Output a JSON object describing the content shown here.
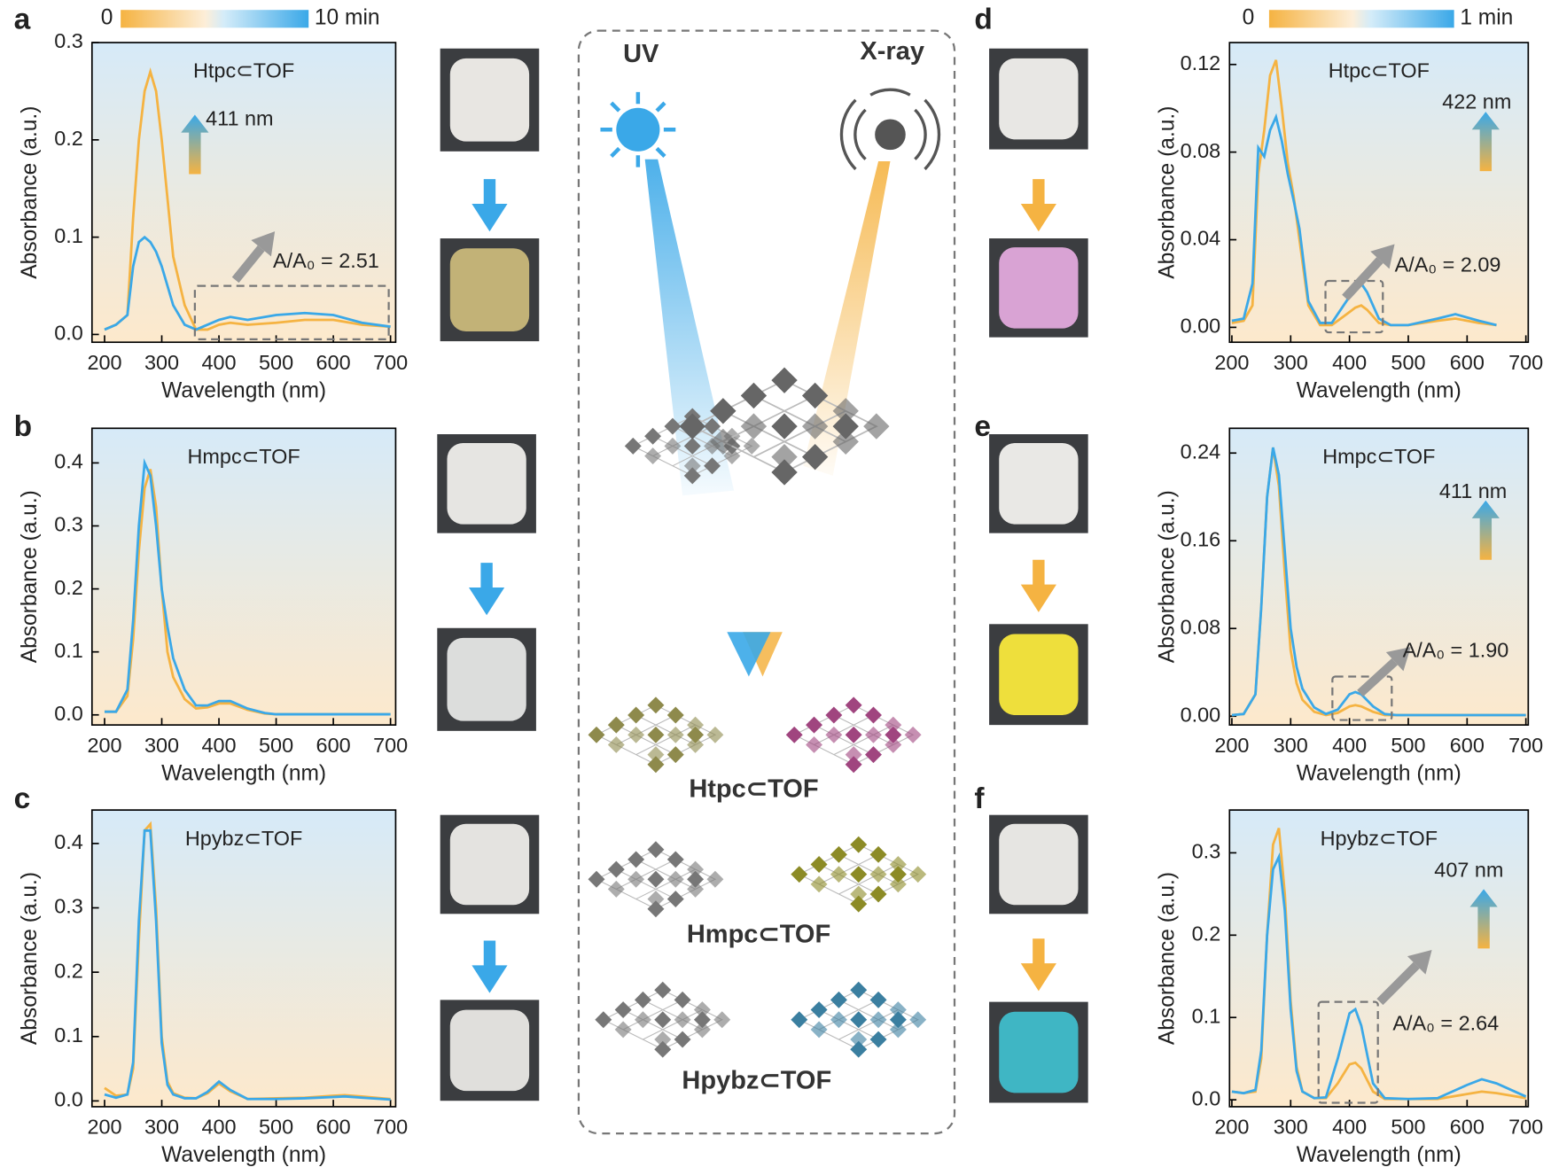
{
  "chart_data": [
    {
      "type": "line",
      "panel": "a",
      "title": "Htpc⊂TOF",
      "xlabel": "Wavelength (nm)",
      "ylabel": "Absorbance (a.u.)",
      "x": [
        200,
        220,
        240,
        250,
        260,
        270,
        280,
        290,
        300,
        310,
        320,
        340,
        360,
        380,
        400,
        420,
        450,
        500,
        550,
        600,
        650,
        700
      ],
      "series": [
        {
          "name": "0",
          "color": "#f5b342",
          "values": [
            0.005,
            0.01,
            0.02,
            0.12,
            0.2,
            0.25,
            0.27,
            0.25,
            0.2,
            0.14,
            0.08,
            0.03,
            0.005,
            0.005,
            0.01,
            0.012,
            0.01,
            0.012,
            0.015,
            0.015,
            0.01,
            0.008
          ]
        },
        {
          "name": "10 min",
          "color": "#3aa8e8",
          "values": [
            0.005,
            0.01,
            0.02,
            0.07,
            0.095,
            0.1,
            0.095,
            0.085,
            0.07,
            0.05,
            0.03,
            0.01,
            0.005,
            0.01,
            0.015,
            0.018,
            0.015,
            0.02,
            0.022,
            0.02,
            0.012,
            0.008
          ]
        }
      ],
      "xlim": [
        178,
        709
      ],
      "ylim": [
        -0.008,
        0.3
      ],
      "xticks": [
        200,
        300,
        400,
        500,
        600,
        700
      ],
      "yticks": [
        {
          "value": 0,
          "label": "0.0"
        },
        0.1,
        0.2,
        0.3
      ],
      "annotations": [
        "411 nm",
        "A/A₀ = 2.51"
      ]
    },
    {
      "type": "line",
      "panel": "b",
      "title": "Hmpc⊂TOF",
      "xlabel": "Wavelength (nm)",
      "ylabel": "Absorbance (a.u.)",
      "x": [
        200,
        220,
        240,
        250,
        260,
        270,
        280,
        290,
        300,
        310,
        320,
        340,
        360,
        380,
        400,
        420,
        450,
        480,
        500,
        550,
        600,
        650,
        700
      ],
      "series": [
        {
          "color": "#f5b342",
          "values": [
            0.005,
            0.005,
            0.03,
            0.12,
            0.26,
            0.36,
            0.39,
            0.33,
            0.2,
            0.1,
            0.06,
            0.025,
            0.01,
            0.012,
            0.018,
            0.018,
            0.008,
            0.002,
            0.001,
            0.001,
            0.001,
            0.001,
            0.001
          ]
        },
        {
          "color": "#3aa8e8",
          "values": [
            0.005,
            0.005,
            0.04,
            0.15,
            0.3,
            0.4,
            0.38,
            0.3,
            0.2,
            0.14,
            0.09,
            0.04,
            0.015,
            0.015,
            0.022,
            0.022,
            0.01,
            0.003,
            0.001,
            0.001,
            0.001,
            0.001,
            0.001
          ]
        }
      ],
      "xlim": [
        178,
        709
      ],
      "ylim": [
        -0.016,
        0.455
      ],
      "xticks": [
        200,
        300,
        400,
        500,
        600,
        700
      ],
      "yticks": [
        {
          "value": 0,
          "label": "0.0"
        },
        0.1,
        0.2,
        0.3,
        0.4
      ]
    },
    {
      "type": "line",
      "panel": "c",
      "title": "Hpybz⊂TOF",
      "xlabel": "Wavelength (nm)",
      "ylabel": "Absorbance (a.u.)",
      "x": [
        200,
        220,
        240,
        250,
        260,
        270,
        280,
        290,
        300,
        310,
        320,
        340,
        360,
        380,
        400,
        420,
        450,
        500,
        550,
        600,
        620,
        650,
        700
      ],
      "series": [
        {
          "color": "#f5b342",
          "values": [
            0.02,
            0.008,
            0.01,
            0.05,
            0.25,
            0.42,
            0.43,
            0.3,
            0.1,
            0.03,
            0.012,
            0.005,
            0.004,
            0.012,
            0.027,
            0.015,
            0.003,
            0.004,
            0.005,
            0.008,
            0.009,
            0.007,
            0.003
          ]
        },
        {
          "color": "#3aa8e8",
          "values": [
            0.01,
            0.005,
            0.01,
            0.06,
            0.28,
            0.42,
            0.42,
            0.28,
            0.09,
            0.025,
            0.01,
            0.004,
            0.004,
            0.014,
            0.03,
            0.017,
            0.003,
            0.003,
            0.004,
            0.006,
            0.007,
            0.005,
            0.002
          ]
        }
      ],
      "xlim": [
        178,
        709
      ],
      "ylim": [
        -0.009,
        0.452
      ],
      "xticks": [
        200,
        300,
        400,
        500,
        600,
        700
      ],
      "yticks": [
        {
          "value": 0,
          "label": "0.0"
        },
        0.1,
        0.2,
        0.3,
        0.4
      ]
    },
    {
      "type": "line",
      "panel": "d",
      "title": "Htpc⊂TOF",
      "xlabel": "Wavelength (nm)",
      "ylabel": "Absorbance (a.u.)",
      "x": [
        200,
        220,
        235,
        245,
        255,
        265,
        275,
        285,
        295,
        305,
        315,
        330,
        350,
        370,
        390,
        410,
        420,
        430,
        450,
        470,
        500,
        550,
        580,
        620,
        650
      ],
      "series": [
        {
          "name": "0",
          "color": "#f5b342",
          "values": [
            0.002,
            0.003,
            0.01,
            0.07,
            0.09,
            0.115,
            0.122,
            0.1,
            0.075,
            0.06,
            0.04,
            0.01,
            0.001,
            0.001,
            0.005,
            0.009,
            0.01,
            0.008,
            0.002,
            0.001,
            0.001,
            0.003,
            0.004,
            0.002,
            0.001
          ]
        },
        {
          "name": "1 min",
          "color": "#3aa8e8",
          "values": [
            0.003,
            0.004,
            0.02,
            0.082,
            0.078,
            0.09,
            0.096,
            0.085,
            0.07,
            0.058,
            0.045,
            0.012,
            0.002,
            0.002,
            0.01,
            0.018,
            0.02,
            0.016,
            0.004,
            0.001,
            0.001,
            0.004,
            0.006,
            0.003,
            0.001
          ]
        }
      ],
      "xlim": [
        196,
        704
      ],
      "ylim": [
        -0.0068,
        0.13
      ],
      "xticks": [
        200,
        300,
        400,
        500,
        600,
        700
      ],
      "yticks": [
        {
          "value": 0,
          "label": "0.00"
        },
        0.04,
        0.08,
        0.12
      ],
      "annotations": [
        "422 nm",
        "A/A₀ = 2.09"
      ]
    },
    {
      "type": "line",
      "panel": "e",
      "title": "Hmpc⊂TOF",
      "xlabel": "Wavelength (nm)",
      "ylabel": "Absorbance (a.u.)",
      "x": [
        200,
        220,
        240,
        250,
        260,
        270,
        280,
        290,
        300,
        310,
        320,
        340,
        360,
        380,
        400,
        410,
        420,
        440,
        460,
        480,
        500,
        550,
        600,
        650,
        700
      ],
      "series": [
        {
          "color": "#f5b342",
          "values": [
            0.001,
            0.002,
            0.02,
            0.1,
            0.2,
            0.245,
            0.21,
            0.13,
            0.06,
            0.03,
            0.015,
            0.004,
            0.001,
            0.003,
            0.009,
            0.01,
            0.009,
            0.004,
            0.001,
            0.001,
            0.001,
            0.001,
            0.001,
            0.001,
            0.001
          ]
        },
        {
          "color": "#3aa8e8",
          "values": [
            0.001,
            0.002,
            0.02,
            0.1,
            0.2,
            0.245,
            0.22,
            0.15,
            0.08,
            0.045,
            0.025,
            0.008,
            0.002,
            0.006,
            0.02,
            0.022,
            0.02,
            0.009,
            0.002,
            0.001,
            0.001,
            0.001,
            0.001,
            0.001,
            0.001
          ]
        }
      ],
      "xlim": [
        196,
        704
      ],
      "ylim": [
        -0.008,
        0.2626
      ],
      "xticks": [
        200,
        300,
        400,
        500,
        600,
        700
      ],
      "yticks": [
        {
          "value": 0,
          "label": "0.00"
        },
        0.08,
        0.16,
        0.24
      ],
      "annotations": [
        "411 nm",
        "A/A₀ = 1.90"
      ]
    },
    {
      "type": "line",
      "panel": "f",
      "title": "Hpybz⊂TOF",
      "xlabel": "Wavelength (nm)",
      "ylabel": "Absorbance (a.u.)",
      "x": [
        200,
        220,
        240,
        250,
        260,
        270,
        280,
        290,
        300,
        310,
        320,
        340,
        360,
        380,
        400,
        410,
        420,
        440,
        460,
        500,
        550,
        600,
        625,
        650,
        700
      ],
      "series": [
        {
          "color": "#f5b342",
          "values": [
            0.01,
            0.008,
            0.01,
            0.05,
            0.2,
            0.31,
            0.33,
            0.25,
            0.12,
            0.04,
            0.01,
            0.002,
            0.002,
            0.02,
            0.043,
            0.045,
            0.038,
            0.01,
            0.001,
            0.001,
            0.001,
            0.007,
            0.01,
            0.008,
            0.002
          ]
        },
        {
          "color": "#3aa8e8",
          "values": [
            0.01,
            0.008,
            0.012,
            0.06,
            0.2,
            0.28,
            0.295,
            0.23,
            0.11,
            0.035,
            0.01,
            0.002,
            0.003,
            0.05,
            0.105,
            0.11,
            0.09,
            0.02,
            0.002,
            0.001,
            0.002,
            0.018,
            0.025,
            0.02,
            0.004
          ]
        }
      ],
      "xlim": [
        196,
        704
      ],
      "ylim": [
        -0.0084,
        0.352
      ],
      "xticks": [
        200,
        300,
        400,
        500,
        600,
        700
      ],
      "yticks": [
        {
          "value": 0,
          "label": "0.0"
        },
        0.1,
        0.2,
        0.3
      ],
      "annotations": [
        "407 nm",
        "A/A₀ = 2.64"
      ]
    }
  ],
  "schematic": {
    "uv": "UV",
    "xray": "X-ray",
    "labels": [
      "Htpc⊂TOF",
      "Hmpc⊂TOF",
      "Hpybz⊂TOF"
    ]
  }
}
